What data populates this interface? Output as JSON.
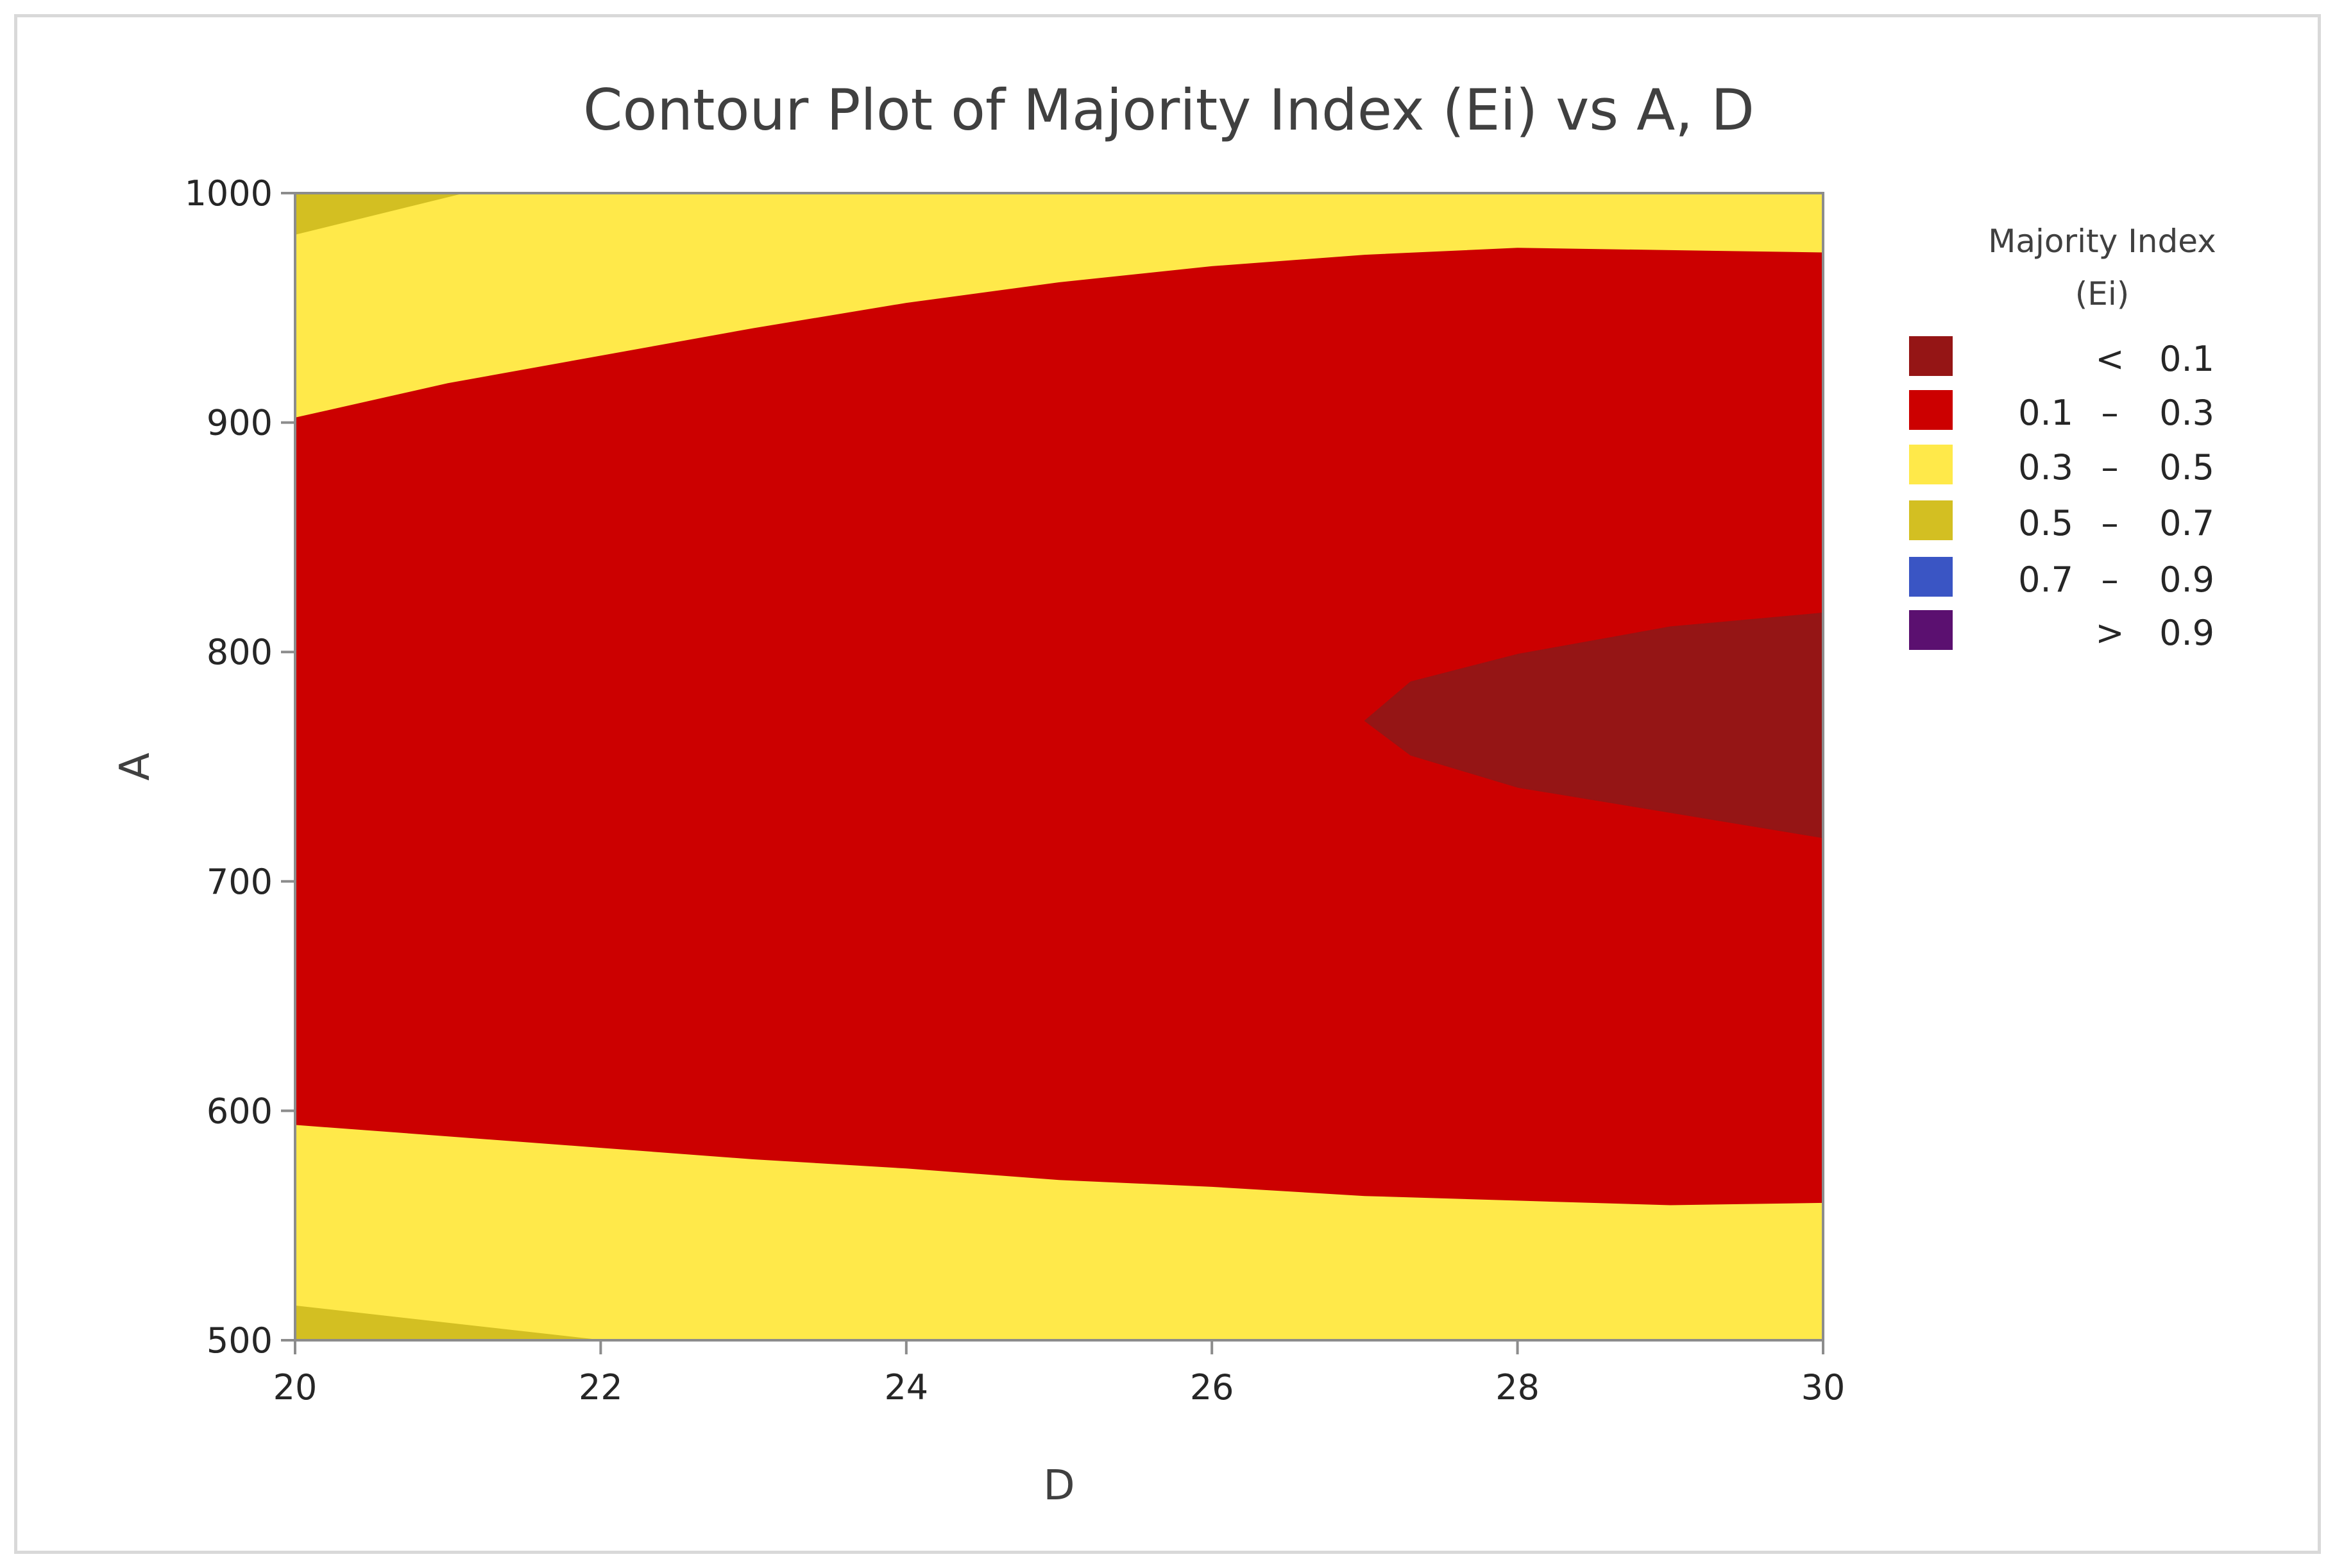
{
  "chart_data": {
    "type": "heatmap",
    "subtype": "contour",
    "title": "Contour Plot of Majority Index (Ei) vs A, D",
    "xlabel": "D",
    "ylabel": "A",
    "xlim": [
      20,
      30
    ],
    "ylim": [
      500,
      1000
    ],
    "xticks": [
      "20",
      "22",
      "24",
      "26",
      "28",
      "30"
    ],
    "yticks": [
      "500",
      "600",
      "700",
      "800",
      "900",
      "1000"
    ],
    "grid": false,
    "legend": {
      "placement": "right",
      "title_line1": "Majority Index",
      "title_line2": "(Ei)",
      "entries": [
        {
          "op": "<",
          "low": "",
          "dash": "",
          "high": "0.1",
          "color": "#951515"
        },
        {
          "op": "",
          "low": "0.1",
          "dash": "–",
          "high": "0.3",
          "color": "#cc0000"
        },
        {
          "op": "",
          "low": "0.3",
          "dash": "–",
          "high": "0.5",
          "color": "#ffe94a"
        },
        {
          "op": "",
          "low": "0.5",
          "dash": "–",
          "high": "0.7",
          "color": "#d3bf22"
        },
        {
          "op": "",
          "low": "0.7",
          "dash": "–",
          "high": "0.9",
          "color": "#3a55c4"
        },
        {
          "op": ">",
          "low": "",
          "dash": "",
          "high": "0.9",
          "color": "#5b1070"
        }
      ]
    },
    "regions": [
      {
        "level": "0.3 – 0.5",
        "color": "#ffe94a",
        "boundary": [
          [
            20,
            500
          ],
          [
            30,
            500
          ],
          [
            30,
            1000
          ],
          [
            20,
            1000
          ]
        ]
      },
      {
        "level": "0.5 – 0.7",
        "color": "#d3bf22",
        "boundary": [
          [
            20,
            1000
          ],
          [
            21.1,
            1000
          ],
          [
            20,
            982
          ]
        ]
      },
      {
        "level": "0.5 – 0.7",
        "color": "#d3bf22",
        "boundary": [
          [
            20,
            500
          ],
          [
            22,
            500
          ],
          [
            20,
            515
          ]
        ]
      },
      {
        "level": "0.1 – 0.3",
        "color": "#cc0000",
        "boundary": [
          [
            20,
            902
          ],
          [
            21,
            917
          ],
          [
            22,
            929
          ],
          [
            23,
            941
          ],
          [
            24,
            952
          ],
          [
            25,
            961
          ],
          [
            26,
            968
          ],
          [
            27,
            973
          ],
          [
            28,
            976
          ],
          [
            29,
            975
          ],
          [
            30,
            974
          ],
          [
            30,
            560
          ],
          [
            29,
            559
          ],
          [
            28,
            561
          ],
          [
            27,
            563
          ],
          [
            26,
            567
          ],
          [
            25,
            570
          ],
          [
            24,
            575
          ],
          [
            23,
            579
          ],
          [
            22,
            584
          ],
          [
            21,
            589
          ],
          [
            20,
            594
          ]
        ]
      },
      {
        "level": "< 0.1",
        "color": "#951515",
        "boundary": [
          [
            30,
            817
          ],
          [
            29,
            811
          ],
          [
            28,
            799
          ],
          [
            27.3,
            787
          ],
          [
            27,
            770
          ],
          [
            27.3,
            755
          ],
          [
            28,
            741
          ],
          [
            29,
            730
          ],
          [
            30,
            719
          ]
        ]
      }
    ]
  }
}
